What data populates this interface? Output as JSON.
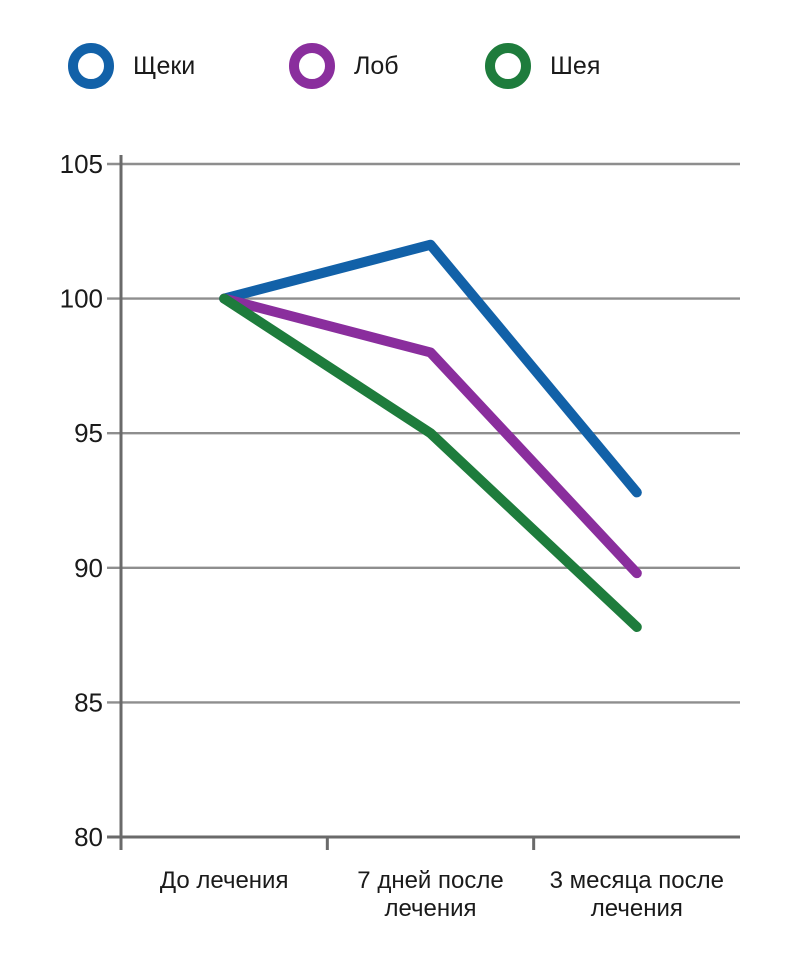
{
  "chart_data": {
    "type": "line",
    "categories": [
      "До лечения",
      "7 дней после лечения",
      "3 месяца после лечения"
    ],
    "category_label_lines": [
      [
        "До лечения"
      ],
      [
        "7 дней после",
        "лечения"
      ],
      [
        "3 месяца после",
        "лечения"
      ]
    ],
    "series": [
      {
        "name": "Щеки",
        "color": "#1261A8",
        "values": [
          100,
          102,
          92.8
        ]
      },
      {
        "name": "Лоб",
        "color": "#8A2E9D",
        "values": [
          100,
          98,
          89.8
        ]
      },
      {
        "name": "Шея",
        "color": "#1E7C3C",
        "values": [
          100,
          95,
          87.8
        ]
      }
    ],
    "yticks": [
      80,
      85,
      90,
      95,
      100,
      105
    ],
    "ylim": [
      80,
      105
    ],
    "grid": true,
    "legend_position": "top"
  },
  "colors": {
    "grid": "#8E8E8E",
    "axis": "#6A6A6A",
    "text": "#1A1A1A",
    "background": "#FFFFFF"
  }
}
